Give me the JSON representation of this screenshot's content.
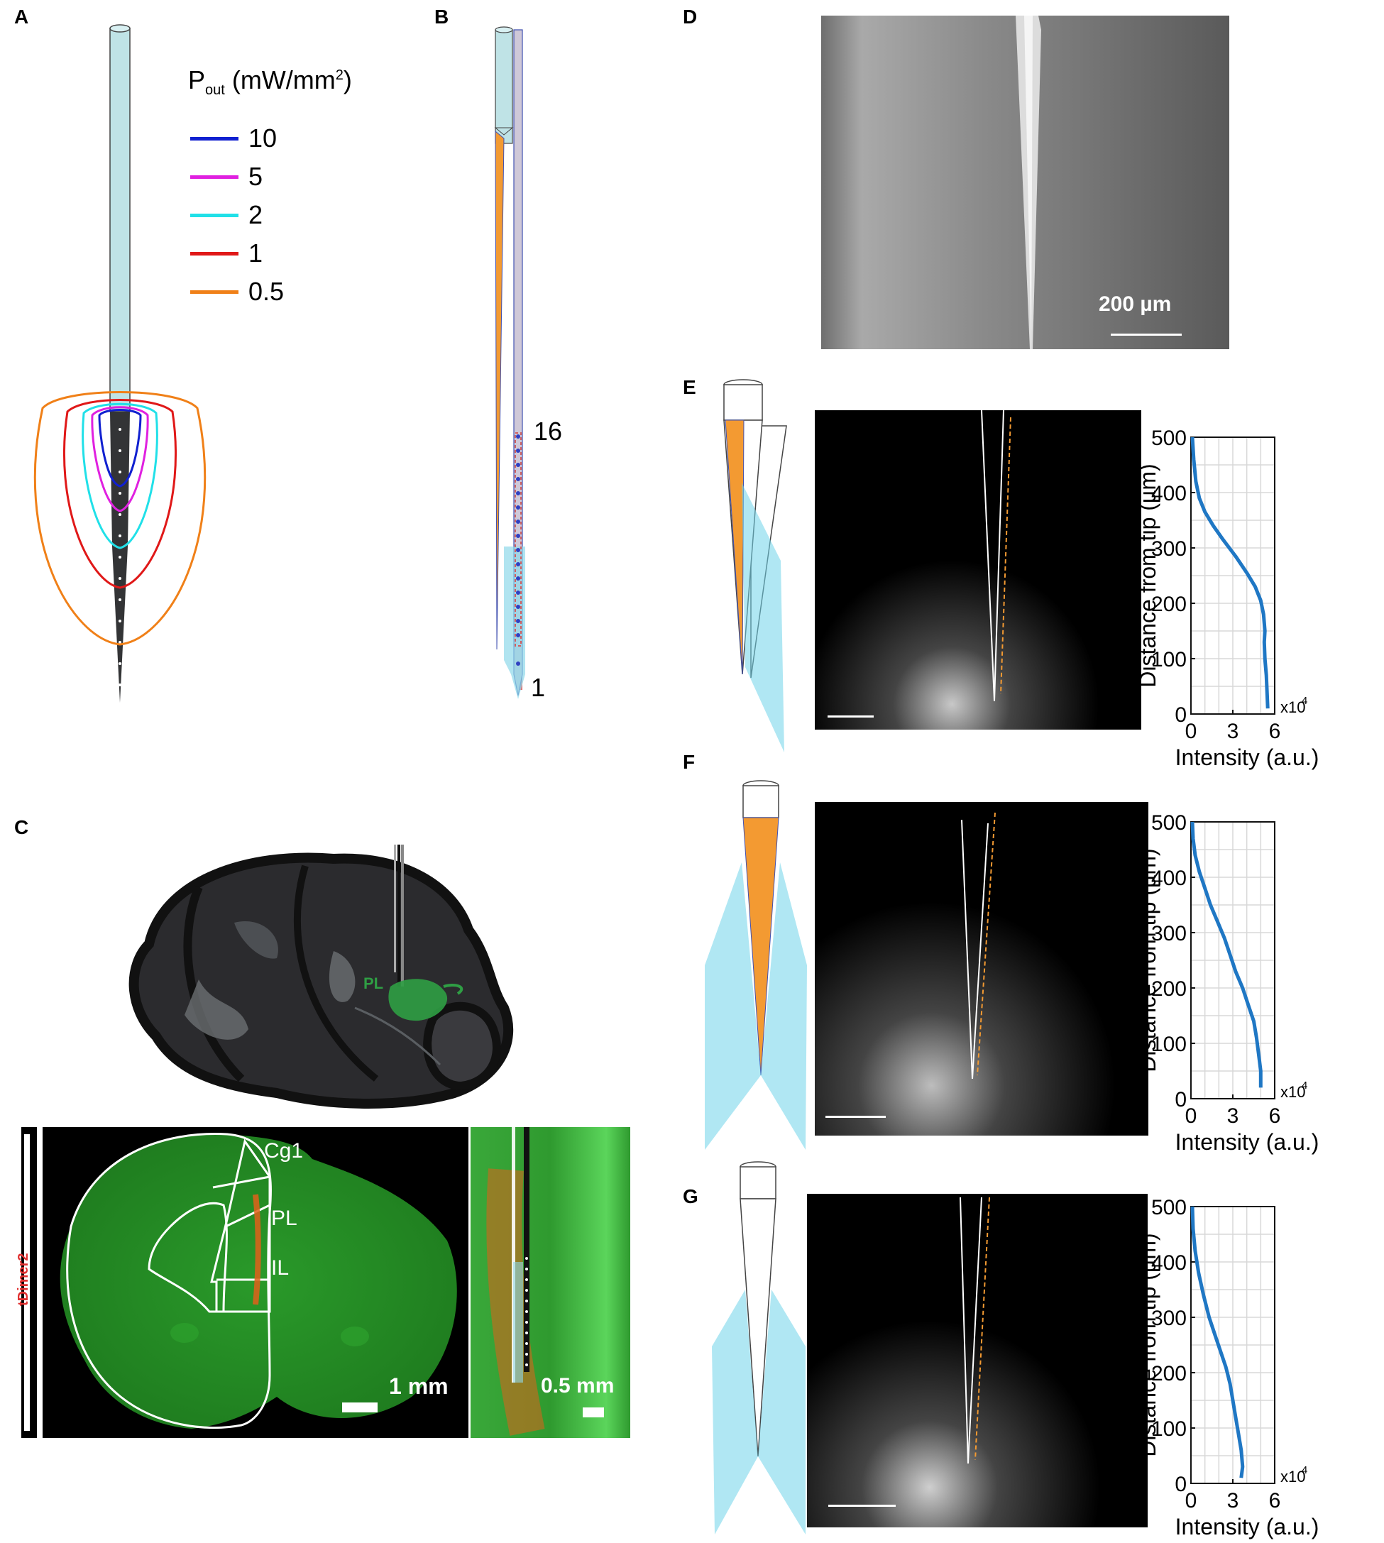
{
  "panels": {
    "A": {
      "letter": "A",
      "legend_title_main": "P",
      "legend_title_sub": "out",
      "legend_title_rest": " (mW/mm",
      "legend_title_sup": "2",
      "legend_title_end": ")",
      "legend": [
        {
          "label": "10",
          "color": "#1020d0"
        },
        {
          "label": "5",
          "color": "#e020e0"
        },
        {
          "label": "2",
          "color": "#20e0e8"
        },
        {
          "label": "1",
          "color": "#e01818"
        },
        {
          "label": "0.5",
          "color": "#f08018"
        }
      ]
    },
    "B": {
      "letter": "B",
      "label_top": "16",
      "label_bottom": "1"
    },
    "C": {
      "letter": "C",
      "region_label_3d": "PL",
      "side_label": "tDimer2",
      "regions": [
        "Cg1",
        "PL",
        "IL"
      ],
      "scale_left": "1 mm",
      "scale_right": "0.5 mm"
    },
    "D": {
      "letter": "D",
      "scale": "200 µm"
    },
    "E": {
      "letter": "E"
    },
    "F": {
      "letter": "F"
    },
    "G": {
      "letter": "G"
    }
  },
  "chart_data": [
    {
      "panel": "E",
      "type": "line",
      "xlabel": "Intensity (a.u.)",
      "ylabel": "Distance from tip (µm)",
      "x_multiplier": "x10",
      "x_multiplier_exp": "4",
      "xlim": [
        0,
        6
      ],
      "ylim": [
        0,
        500
      ],
      "xticks": [
        "0",
        "3",
        "6"
      ],
      "yticks": [
        "0",
        "100",
        "200",
        "300",
        "400",
        "500"
      ],
      "grid": true,
      "color": "#1f77c4",
      "series": [
        {
          "values": [
            [
              0.1,
              500
            ],
            [
              0.2,
              460
            ],
            [
              0.35,
              420
            ],
            [
              0.6,
              390
            ],
            [
              1.0,
              365
            ],
            [
              1.6,
              340
            ],
            [
              2.3,
              315
            ],
            [
              3.2,
              285
            ],
            [
              4.0,
              255
            ],
            [
              4.6,
              230
            ],
            [
              5.0,
              205
            ],
            [
              5.2,
              180
            ],
            [
              5.3,
              150
            ],
            [
              5.25,
              130
            ],
            [
              5.3,
              100
            ],
            [
              5.4,
              70
            ],
            [
              5.45,
              40
            ],
            [
              5.5,
              10
            ]
          ]
        }
      ]
    },
    {
      "panel": "F",
      "type": "line",
      "xlabel": "Intensity (a.u.)",
      "ylabel": "Distance from tip (µm)",
      "x_multiplier": "x10",
      "x_multiplier_exp": "4",
      "xlim": [
        0,
        6
      ],
      "ylim": [
        0,
        500
      ],
      "xticks": [
        "0",
        "3",
        "6"
      ],
      "yticks": [
        "0",
        "100",
        "200",
        "300",
        "400",
        "500"
      ],
      "grid": true,
      "color": "#1f77c4",
      "series": [
        {
          "values": [
            [
              0.1,
              500
            ],
            [
              0.15,
              470
            ],
            [
              0.3,
              440
            ],
            [
              0.6,
              410
            ],
            [
              1.0,
              380
            ],
            [
              1.4,
              350
            ],
            [
              1.9,
              320
            ],
            [
              2.4,
              290
            ],
            [
              2.8,
              260
            ],
            [
              3.2,
              230
            ],
            [
              3.7,
              200
            ],
            [
              4.1,
              170
            ],
            [
              4.5,
              140
            ],
            [
              4.7,
              110
            ],
            [
              4.85,
              80
            ],
            [
              5.0,
              50
            ],
            [
              5.0,
              20
            ]
          ]
        }
      ]
    },
    {
      "panel": "G",
      "type": "line",
      "xlabel": "Intensity (a.u.)",
      "ylabel": "Distance from tip (µm)",
      "x_multiplier": "x10",
      "x_multiplier_exp": "4",
      "xlim": [
        0,
        6
      ],
      "ylim": [
        0,
        500
      ],
      "xticks": [
        "0",
        "3",
        "6"
      ],
      "yticks": [
        "0",
        "100",
        "200",
        "300",
        "400",
        "500"
      ],
      "grid": true,
      "color": "#1f77c4",
      "series": [
        {
          "values": [
            [
              0.1,
              500
            ],
            [
              0.15,
              460
            ],
            [
              0.3,
              420
            ],
            [
              0.55,
              380
            ],
            [
              0.9,
              340
            ],
            [
              1.3,
              300
            ],
            [
              1.7,
              270
            ],
            [
              2.1,
              240
            ],
            [
              2.5,
              210
            ],
            [
              2.8,
              180
            ],
            [
              3.0,
              150
            ],
            [
              3.2,
              120
            ],
            [
              3.4,
              90
            ],
            [
              3.6,
              60
            ],
            [
              3.7,
              30
            ],
            [
              3.6,
              10
            ]
          ]
        }
      ]
    }
  ]
}
